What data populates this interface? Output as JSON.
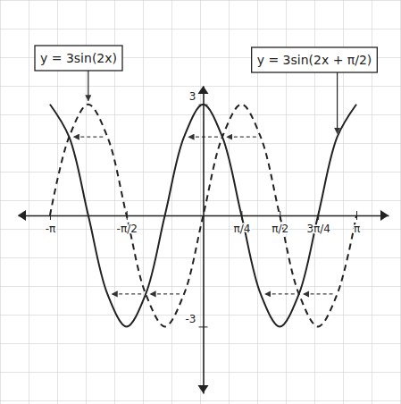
{
  "chart_data": {
    "type": "line",
    "x": [
      -3.1416,
      -2.7489,
      -2.3562,
      -1.9635,
      -1.5708,
      -1.1781,
      -0.7854,
      -0.3927,
      0,
      0.3927,
      0.7854,
      1.1781,
      1.5708,
      1.9635,
      2.3562,
      2.7489,
      3.1416
    ],
    "series": [
      {
        "name": "y = 3sin(2x)",
        "color": "#222222",
        "line_style": "dashed",
        "values": [
          0,
          2.12,
          3,
          2.12,
          0,
          -2.12,
          -3,
          -2.12,
          0,
          2.12,
          3,
          2.12,
          0,
          -2.12,
          -3,
          -2.12,
          0
        ]
      },
      {
        "name": "y = 3sin(2x + π/2)",
        "color": "#222222",
        "line_style": "solid",
        "values": [
          3,
          2.12,
          0,
          -2.12,
          -3,
          -2.12,
          0,
          2.12,
          3,
          2.12,
          0,
          -2.12,
          -3,
          -2.12,
          0,
          2.12,
          3
        ]
      }
    ],
    "xlim": [
      -3.8,
      3.8
    ],
    "ylim": [
      -4.8,
      3.5
    ],
    "xticks": [
      {
        "value": -3.1416,
        "label": "-π"
      },
      {
        "value": -1.5708,
        "label": "-π/2"
      },
      {
        "value": 0.7854,
        "label": "π/4"
      },
      {
        "value": 1.5708,
        "label": "π/2"
      },
      {
        "value": 2.3562,
        "label": "3π/4"
      },
      {
        "value": 3.1416,
        "label": "π"
      }
    ],
    "yticks": [
      -3,
      3
    ],
    "grid": true
  }
}
